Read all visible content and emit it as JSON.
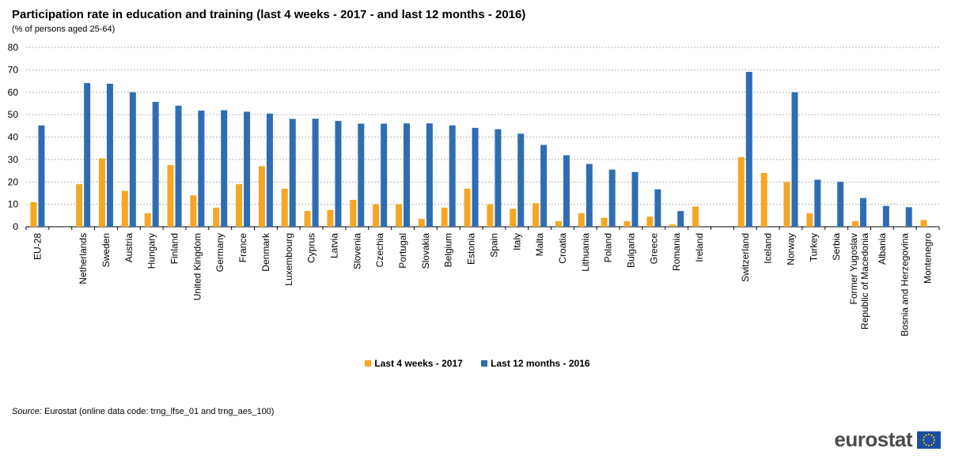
{
  "chart_data": {
    "type": "bar",
    "title": "Participation rate in education and training (last 4 weeks - 2017 - and last 12 months - 2016)",
    "subtitle": "(% of persons aged 25-64)",
    "ylim": [
      0,
      80
    ],
    "yticks": [
      0,
      10,
      20,
      30,
      40,
      50,
      60,
      70,
      80
    ],
    "grid": true,
    "legend_position": "bottom",
    "categories": [
      "EU-28",
      "",
      "Netherlands",
      "Sweden",
      "Austria",
      "Hungary",
      "Finland",
      "United Kingdom",
      "Germany",
      "France",
      "Denmark",
      "Luxembourg",
      "Cyprus",
      "Latvia",
      "Slovenia",
      "Czechia",
      "Portugal",
      "Slovakia",
      "Belgium",
      "Estonia",
      "Spain",
      "Italy",
      "Malta",
      "Croatia",
      "Lithuania",
      "Poland",
      "Bulgaria",
      "Greece",
      "Romania",
      "Ireland",
      "",
      "Switzerland",
      "Iceland",
      "Norway",
      "Turkey",
      "Serbia",
      "Former Yugoslav Republic of Macedonia",
      "Albania",
      "Bosnia and Herzegovina",
      "Montenegro"
    ],
    "series": [
      {
        "name": "Last 4 weeks - 2017",
        "color": "#f5a623",
        "values": [
          11,
          null,
          19,
          30.5,
          16,
          6,
          27.5,
          14,
          8.5,
          19,
          27,
          17,
          7,
          7.5,
          12,
          10,
          10,
          3.5,
          8.5,
          17,
          10,
          8,
          10.5,
          2.5,
          6,
          4,
          2.5,
          4.5,
          1,
          9,
          null,
          31,
          24,
          20,
          6,
          null,
          2.5,
          null,
          null,
          3
        ]
      },
      {
        "name": "Last 12 months  - 2016",
        "color": "#2e6db4",
        "values": [
          45.2,
          null,
          64.1,
          63.8,
          60,
          55.7,
          54,
          51.8,
          52,
          51.3,
          50.5,
          48.1,
          48.2,
          47.2,
          46,
          46,
          46.1,
          46.1,
          45.2,
          44.1,
          43.5,
          41.5,
          36.5,
          31.9,
          28,
          25.5,
          24.4,
          16.7,
          7,
          null,
          null,
          69.1,
          null,
          60,
          21,
          20,
          12.8,
          9.3,
          8.7,
          null
        ]
      }
    ]
  },
  "source": {
    "label": "Source:",
    "text": "Eurostat (online data code: trng_lfse_01 and trng_aes_100)"
  },
  "logo": {
    "text": "eurostat",
    "icon": "eu-flag-icon"
  }
}
